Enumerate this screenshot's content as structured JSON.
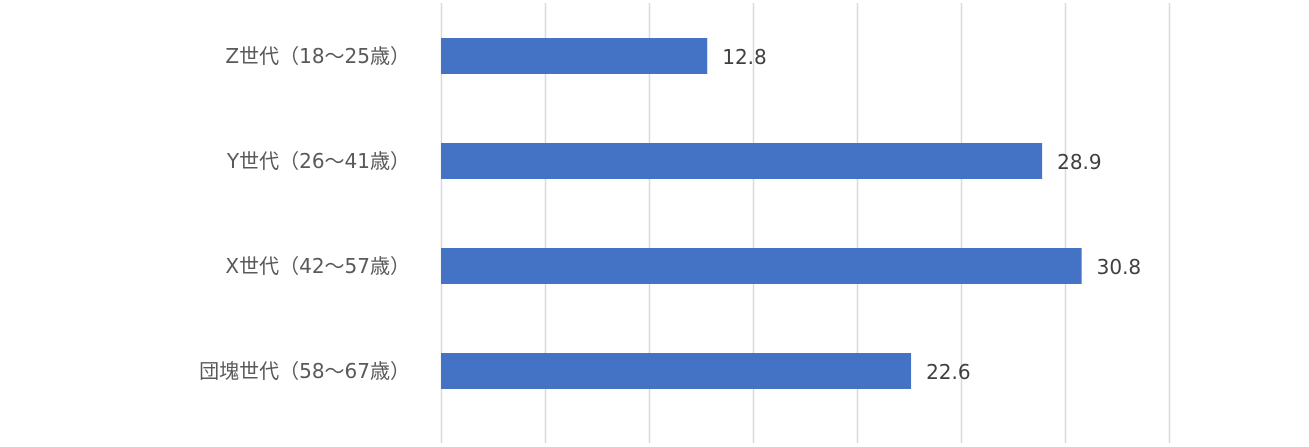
{
  "chart_data": {
    "type": "bar",
    "orientation": "horizontal",
    "categories": [
      "Z世代（18〜25歳）",
      "Y世代（26〜41歳）",
      "X世代（42〜57歳）",
      "団塊世代（58〜67歳）"
    ],
    "values": [
      12.8,
      28.9,
      30.8,
      22.6
    ],
    "data_labels": [
      "12.8",
      "28.9",
      "30.8",
      "22.6"
    ],
    "xlim": [
      0,
      35
    ],
    "x_gridline_step": 5,
    "grid": true,
    "x_tick_labels_visible": false,
    "legend": "none",
    "colors": {
      "bar": "#4472C4",
      "grid": "#D9D9D9",
      "label": "#595959",
      "data_label": "#404040"
    }
  }
}
